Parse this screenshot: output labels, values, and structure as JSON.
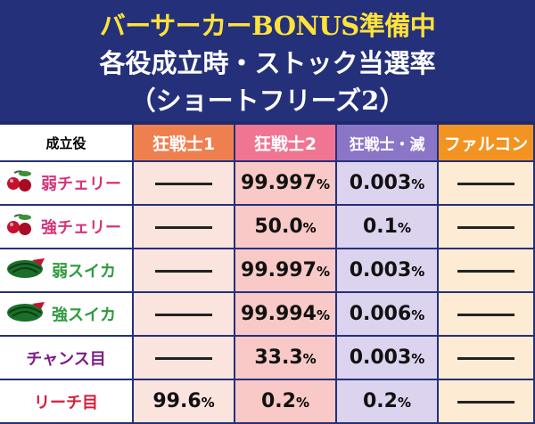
{
  "header": {
    "line1": "バーサーカーBONUS準備中",
    "line2": "各役成立時・ストック当選率",
    "line3": "（ショートフリーズ2）"
  },
  "table": {
    "columns": [
      "成立役",
      "狂戦士1",
      "狂戦士2",
      "狂戦士・滅",
      "ファルコン"
    ],
    "rows": [
      {
        "role": "弱チェリー",
        "icon": "cherry-icon",
        "color": "#d6337a",
        "v1": "",
        "v2": "99.997",
        "v3": "0.003",
        "v4": ""
      },
      {
        "role": "強チェリー",
        "icon": "cherry-icon",
        "color": "#d6337a",
        "v1": "",
        "v2": "50.0",
        "v3": "0.1",
        "v4": ""
      },
      {
        "role": "弱スイカ",
        "icon": "watermelon-icon",
        "color": "#2f9a3e",
        "v1": "",
        "v2": "99.997",
        "v3": "0.003",
        "v4": ""
      },
      {
        "role": "強スイカ",
        "icon": "watermelon-icon",
        "color": "#2f9a3e",
        "v1": "",
        "v2": "99.994",
        "v3": "0.006",
        "v4": ""
      },
      {
        "role": "チャンス目",
        "icon": "",
        "color": "#7a1e86",
        "v1": "",
        "v2": "33.3",
        "v3": "0.003",
        "v4": ""
      },
      {
        "role": "リーチ目",
        "icon": "",
        "color": "#d4203c",
        "v1": "99.6",
        "v2": "0.2",
        "v3": "0.2",
        "v4": ""
      }
    ],
    "percent_sign": "%"
  }
}
